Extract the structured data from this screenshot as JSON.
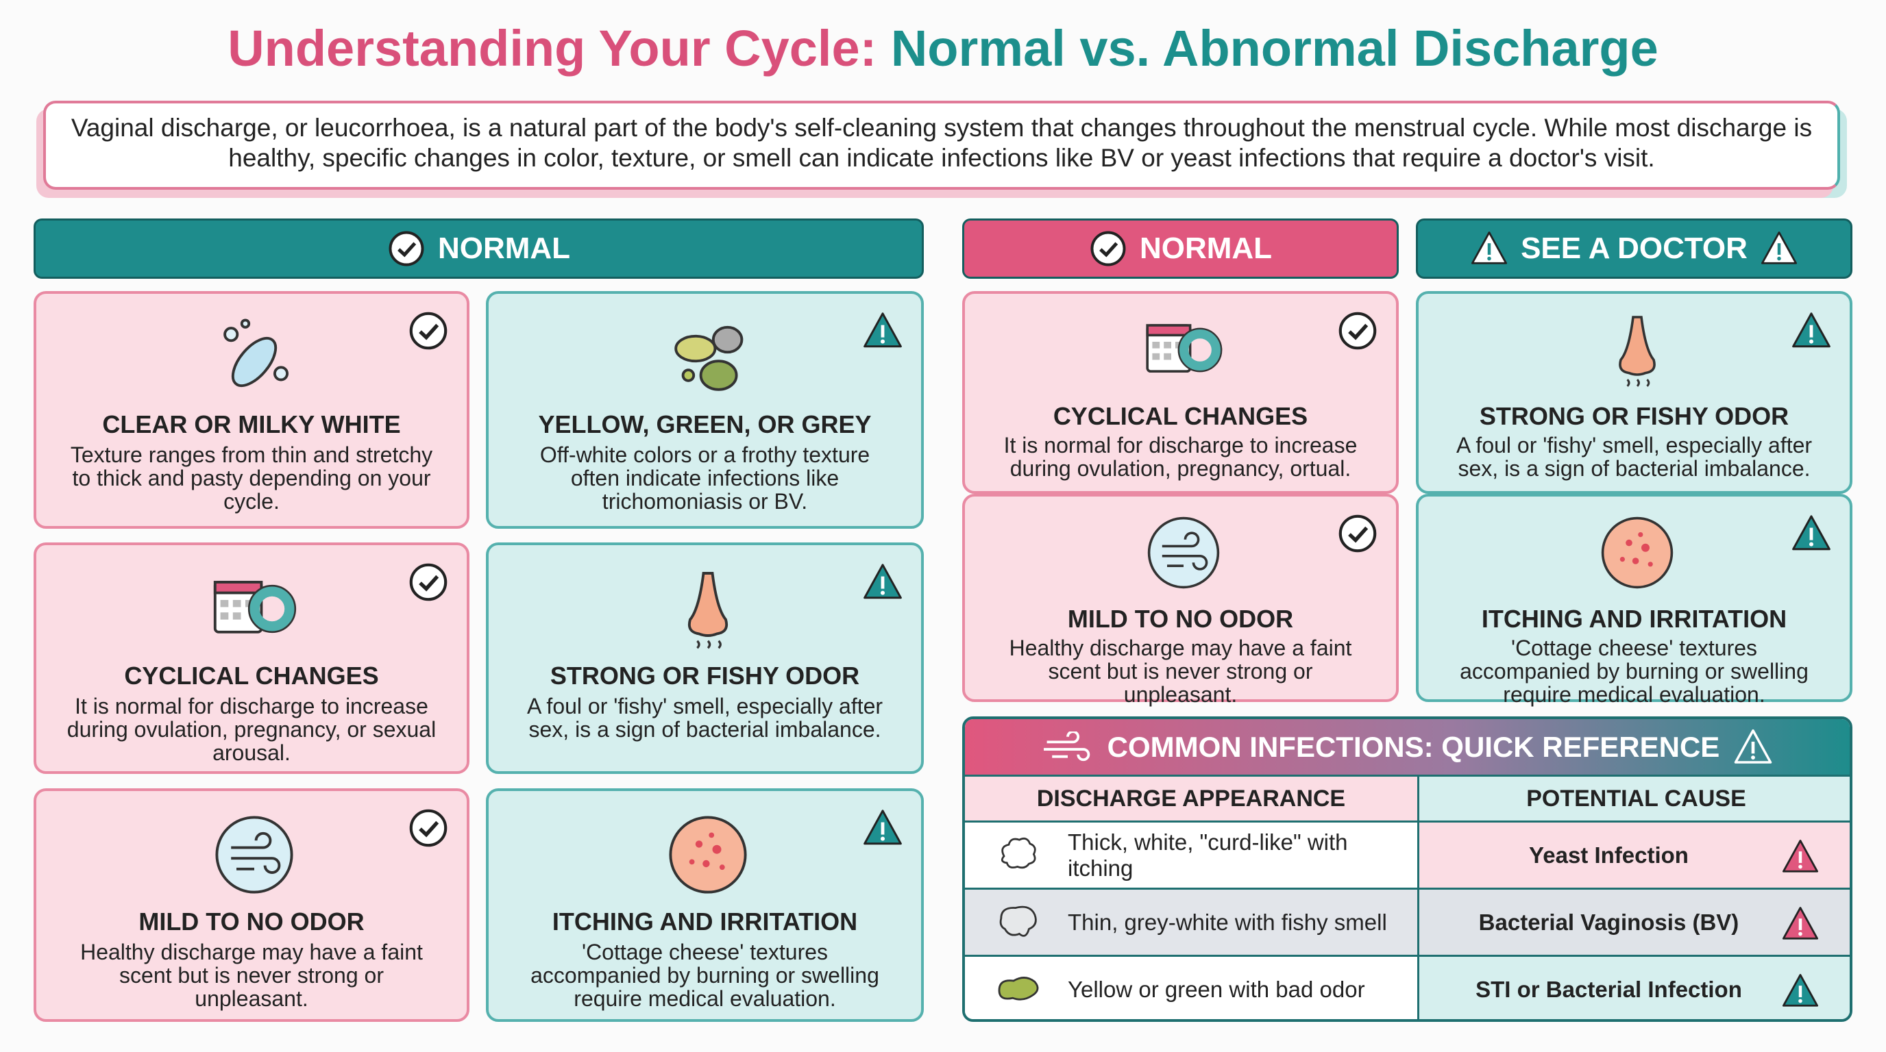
{
  "title": {
    "part1": "Understanding Your Cycle:",
    "part2": "Normal vs. Abnormal Discharge"
  },
  "intro": "Vaginal discharge, or leucorrhoea, is a natural part of the body's self-cleaning system that changes throughout the menstrual cycle. While most discharge is healthy, specific changes in color, texture, or smell can indicate infections like BV or yeast infections that require a doctor's visit.",
  "left_panel": {
    "header": "NORMAL",
    "normal_cards": [
      {
        "title": "CLEAR OR MILKY WHITE",
        "text": "Texture ranges from thin and stretchy to thick and pasty depending on your cycle."
      },
      {
        "title": "CYCLICAL CHANGES",
        "text": "It is normal for discharge to increase during ovulation, pregnancy, or sexual arousal."
      },
      {
        "title": "MILD TO NO ODOR",
        "text": "Healthy discharge may have a faint scent but is never strong or unpleasant."
      }
    ],
    "warning_cards": [
      {
        "title": "YELLOW, GREEN, OR GREY",
        "text": "Off-white colors or a frothy texture often indicate infections like trichomoniasis or BV."
      },
      {
        "title": "STRONG OR FISHY ODOR",
        "text": "A foul or 'fishy' smell, especially after sex, is a sign of bacterial imbalance."
      },
      {
        "title": "ITCHING AND IRRITATION",
        "text": "'Cottage cheese' textures accompanied by burning or swelling require medical evaluation."
      }
    ]
  },
  "right_panel": {
    "normal_header": "NORMAL",
    "doctor_header": "SEE A DOCTOR",
    "normal_cards": [
      {
        "title": "CYCLICAL CHANGES",
        "text": "It is normal for discharge to increase during ovulation, pregnancy, ortual."
      },
      {
        "title": "MILD TO NO ODOR",
        "text": "Healthy discharge may have a faint scent but is never strong or unpleasant."
      }
    ],
    "doctor_cards": [
      {
        "title": "STRONG OR FISHY ODOR",
        "text": "A foul or 'fishy' smell, especially after sex, is a sign of bacterial imbalance."
      },
      {
        "title": "ITCHING AND IRRITATION",
        "text": "'Cottage cheese' textures accompanied by burning or swelling require medical evaluation."
      }
    ]
  },
  "table": {
    "title": "COMMON INFECTIONS: QUICK REFERENCE",
    "headers": [
      "DISCHARGE APPEARANCE",
      "POTENTIAL CAUSE"
    ],
    "rows": [
      [
        "Thick, white, \"curd-like\" with itching",
        "Yeast Infection"
      ],
      [
        "Thin, grey-white with fishy smell",
        "Bacterial Vaginosis (BV)"
      ],
      [
        "Yellow or green with bad odor",
        "STI or Bacterial Infection"
      ]
    ]
  }
}
